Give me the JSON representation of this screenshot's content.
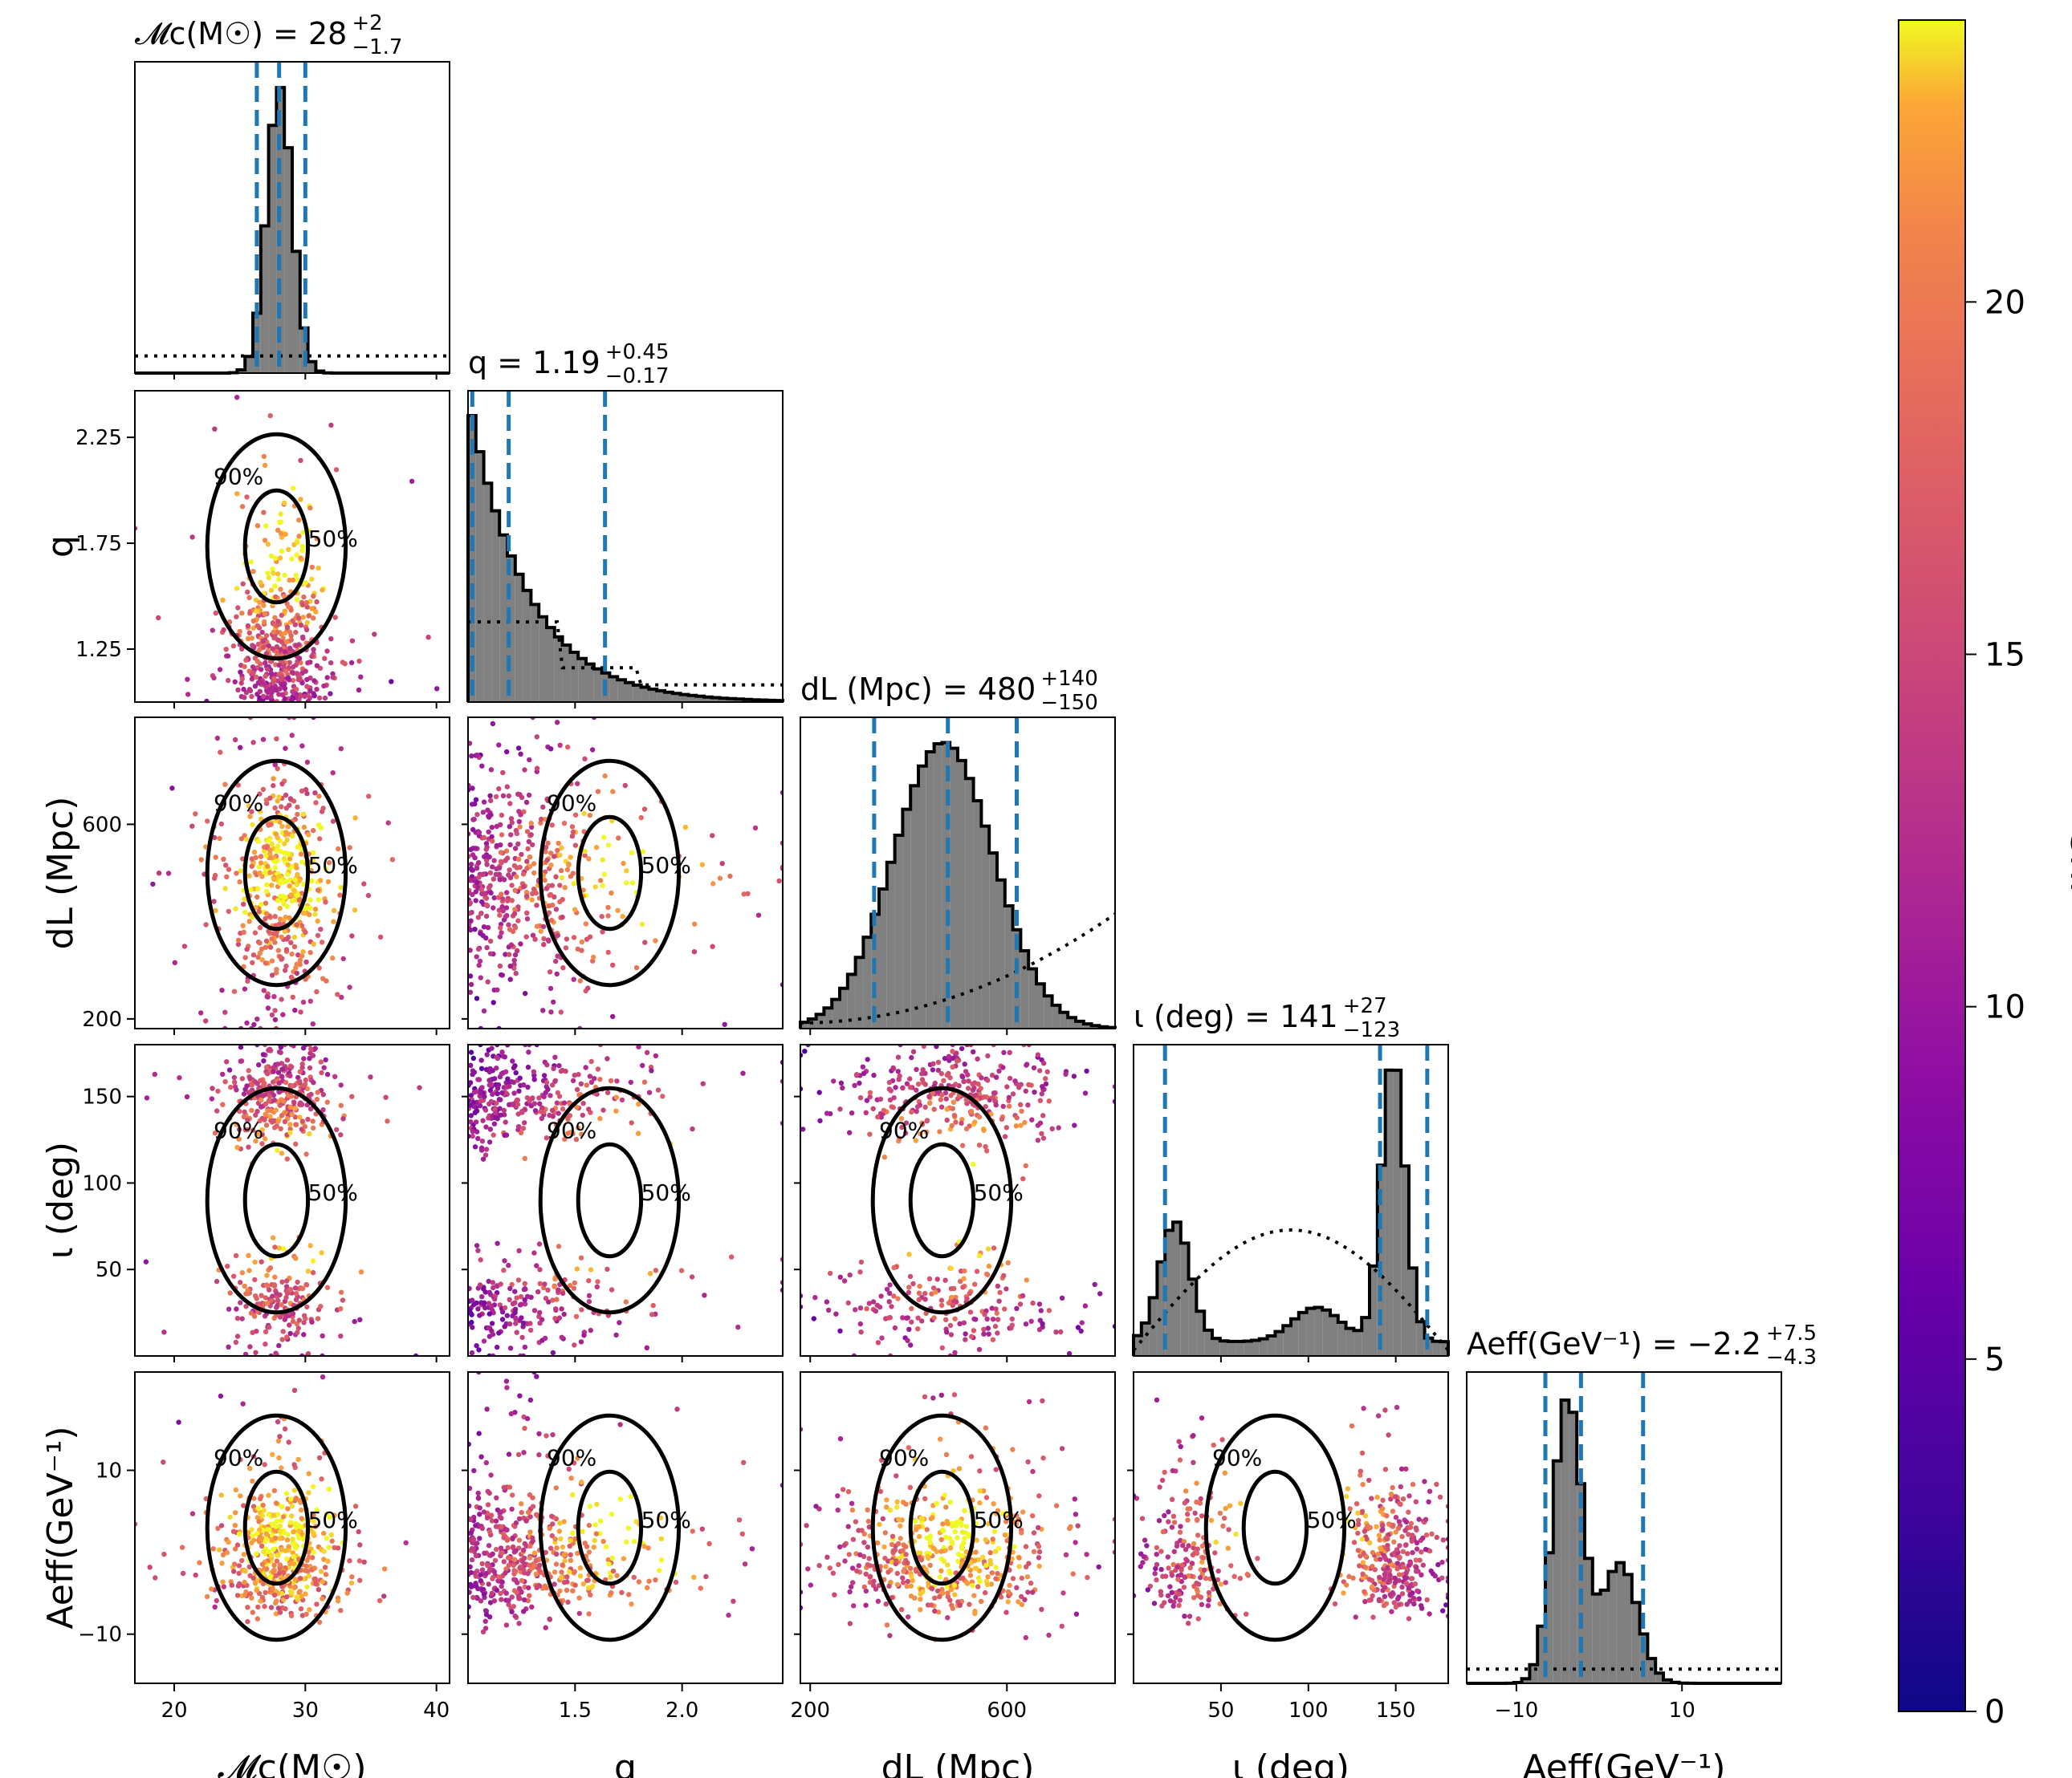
{
  "chart_data": {
    "type": "corner",
    "description_params": [
      "Mc",
      "q",
      "dL",
      "iota",
      "Aeff"
    ],
    "params": [
      {
        "key": "Mc",
        "label": "𝓜c(M☉)",
        "range": [
          17,
          41
        ],
        "ticks": [
          20,
          30,
          40
        ],
        "tick_labels": [
          "20",
          "30",
          "40"
        ],
        "title_main": "𝓜c(M☉) = 28",
        "median": 28,
        "lo": 26.3,
        "hi": 30.0,
        "err_plus": "+2",
        "err_minus": "−1.7"
      },
      {
        "key": "q",
        "label": "q",
        "range": [
          1.0,
          2.47
        ],
        "ticks": [
          1.25,
          1.75,
          2.25
        ],
        "tick_labels": [
          "1.25",
          "1.75",
          "2.25"
        ],
        "xticks": [
          1.5,
          2.0
        ],
        "xtick_labels": [
          "1.5",
          "2.0"
        ],
        "title_main": "q = 1.19",
        "median": 1.19,
        "lo": 1.02,
        "hi": 1.64,
        "err_plus": "+0.45",
        "err_minus": "−0.17"
      },
      {
        "key": "dL",
        "label": "dL (Mpc)",
        "range": [
          180,
          820
        ],
        "ticks": [
          200,
          600
        ],
        "tick_labels": [
          "200",
          "600"
        ],
        "title_main": "dL (Mpc) = 480",
        "median": 480,
        "lo": 330,
        "hi": 620,
        "err_plus": "+140",
        "err_minus": "−150"
      },
      {
        "key": "iota",
        "label": "ι (deg)",
        "range": [
          0,
          180
        ],
        "ticks": [
          50,
          100,
          150
        ],
        "tick_labels": [
          "50",
          "100",
          "150"
        ],
        "title_main": "ι (deg) = 141",
        "median": 141,
        "lo": 18,
        "hi": 168,
        "err_plus": "+27",
        "err_minus": "−123"
      },
      {
        "key": "Aeff",
        "label": "Aeff(GeV⁻¹)",
        "range": [
          -16,
          22
        ],
        "ticks": [
          -10,
          10
        ],
        "tick_labels": [
          "−10",
          "10"
        ],
        "title_main": "Aeff(GeV⁻¹) = −2.2",
        "median": -2.2,
        "lo": -6.5,
        "hi": 5.3,
        "err_plus": "+7.5",
        "err_minus": "−4.3"
      }
    ],
    "axis_labels": {
      "Mc": {
        "main": "𝓜c(M☉)"
      },
      "q": {
        "main": "q"
      },
      "dL": {
        "main": "dL (Mpc)"
      },
      "iota": {
        "main": "ι (deg)"
      },
      "Aeff": {
        "main": "Aeff(GeV⁻¹)"
      }
    },
    "contour_levels": [
      "50%",
      "90%"
    ],
    "colorbar": {
      "label": "snr",
      "range": [
        0,
        24
      ],
      "ticks": [
        0,
        5,
        10,
        15,
        20
      ],
      "tick_labels": [
        "0",
        "5",
        "10",
        "15",
        "20"
      ],
      "colormap": "plasma"
    },
    "colors": {
      "histogram_fill": "#808080",
      "interval_lines": "#1f77b4",
      "contours": "#000000",
      "prior_line": "#000000"
    },
    "legend_placement": "none",
    "grid": false
  }
}
